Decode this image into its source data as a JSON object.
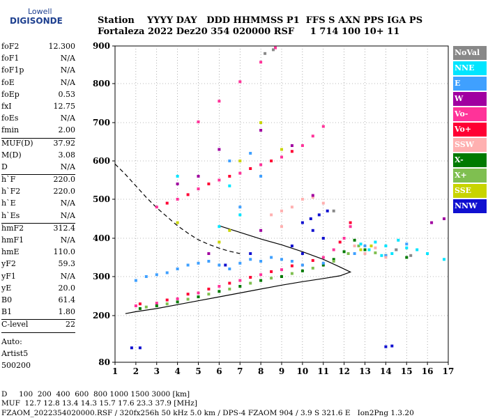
{
  "logo": {
    "line1": "Lowell",
    "line2": "DIGISONDE"
  },
  "header": {
    "line1": "Station    YYYY DAY   DDD HHMMSS P1  FFS S AXN PPS IGA PS",
    "line2": "Fortaleza 2022 Dez20 354 020000 RSF     1 714 100 10+ 11"
  },
  "params": {
    "g1": [
      [
        "foF2",
        "12.300"
      ],
      [
        "foF1",
        "N/A"
      ],
      [
        "foF1p",
        "N/A"
      ],
      [
        "foE",
        "N/A"
      ],
      [
        "foEp",
        "0.53"
      ],
      [
        "fxI",
        "12.75"
      ],
      [
        "foEs",
        "N/A"
      ],
      [
        "fmin",
        "2.00"
      ]
    ],
    "g2": [
      [
        "MUF(D)",
        "37.92"
      ],
      [
        "M(D)",
        "3.08"
      ],
      [
        "D",
        "N/A"
      ]
    ],
    "g3": [
      [
        "h`F",
        "220.0"
      ],
      [
        "h`F2",
        "220.0"
      ],
      [
        "h`E",
        "N/A"
      ],
      [
        "h`Es",
        "N/A"
      ]
    ],
    "g4": [
      [
        "hmF2",
        "312.4"
      ],
      [
        "hmF1",
        "N/A"
      ],
      [
        "hmE",
        "110.0"
      ],
      [
        "yF2",
        "59.3"
      ],
      [
        "yF1",
        "N/A"
      ],
      [
        "yE",
        "20.0"
      ],
      [
        "B0",
        "61.4"
      ],
      [
        "B1",
        "1.80"
      ]
    ],
    "g5": [
      [
        "C-level",
        "22"
      ]
    ],
    "auto": [
      "Auto:",
      "Artist5",
      "500200"
    ]
  },
  "legend": [
    {
      "label": "NoVal",
      "color": "#888888"
    },
    {
      "label": "NNE",
      "color": "#00e5ff"
    },
    {
      "label": "E",
      "color": "#3fa0ff"
    },
    {
      "label": "W",
      "color": "#a000a0"
    },
    {
      "label": "Vo-",
      "color": "#ff3399"
    },
    {
      "label": "Vo+",
      "color": "#ff0033"
    },
    {
      "label": "SSW",
      "color": "#ffb0b0"
    },
    {
      "label": "X-",
      "color": "#007a00"
    },
    {
      "label": "X+",
      "color": "#7fbf50"
    },
    {
      "label": "SSE",
      "color": "#c8d400"
    },
    {
      "label": "NNW",
      "color": "#1010d0"
    }
  ],
  "footer": {
    "line1": "D     100  200  400  600  800 1000 1500 3000 [km]",
    "line2": "MUF  12.7 12.8 13.4 14.3 15.7 17.6 23.3 37.9 [MHz]",
    "line3": "FZAOM_2022354020000.RSF / 320fx256h 50 kHz 5.0 km / DPS-4 FZAOM 904 / 3.9 S 321.6 E   Ion2Png 1.3.20"
  },
  "chart_data": {
    "type": "scatter",
    "title": "",
    "xlabel": "",
    "ylabel": "",
    "xlim": [
      1,
      17
    ],
    "ylim": [
      80,
      900
    ],
    "x_ticks": [
      1,
      2,
      3,
      4,
      5,
      6,
      7,
      8,
      9,
      10,
      11,
      12,
      13,
      14,
      15,
      16,
      17
    ],
    "y_ticks": [
      80,
      200,
      300,
      400,
      500,
      600,
      700,
      800,
      900
    ],
    "grid": "dotted",
    "legend_position": "right",
    "series": [
      {
        "name": "Vo-",
        "color": "#ff3399",
        "points": [
          [
            2.0,
            225
          ],
          [
            3.0,
            232
          ],
          [
            4.0,
            243
          ],
          [
            5.0,
            258
          ],
          [
            6.0,
            275
          ],
          [
            7.0,
            290
          ],
          [
            8.0,
            305
          ],
          [
            9.0,
            318
          ],
          [
            10.0,
            330
          ],
          [
            11.0,
            350
          ],
          [
            11.5,
            370
          ],
          [
            12.0,
            400
          ],
          [
            12.3,
            430
          ],
          [
            3.0,
            480
          ],
          [
            4.0,
            500
          ],
          [
            5.0,
            527
          ],
          [
            6.0,
            550
          ],
          [
            7.0,
            568
          ],
          [
            8.0,
            590
          ],
          [
            9.0,
            610
          ],
          [
            10.0,
            640
          ],
          [
            10.5,
            665
          ],
          [
            11.0,
            690
          ],
          [
            5.0,
            702
          ],
          [
            6.0,
            755
          ],
          [
            7.0,
            805
          ],
          [
            8.0,
            857
          ],
          [
            8.7,
            895
          ]
        ]
      },
      {
        "name": "Vo+",
        "color": "#ff0033",
        "points": [
          [
            2.2,
            230
          ],
          [
            3.5,
            240
          ],
          [
            4.5,
            255
          ],
          [
            5.5,
            268
          ],
          [
            6.5,
            283
          ],
          [
            7.5,
            298
          ],
          [
            8.5,
            313
          ],
          [
            9.5,
            328
          ],
          [
            10.5,
            342
          ],
          [
            11.8,
            390
          ],
          [
            12.3,
            440
          ],
          [
            3.5,
            490
          ],
          [
            4.5,
            512
          ],
          [
            5.5,
            540
          ],
          [
            6.5,
            560
          ],
          [
            7.5,
            580
          ],
          [
            8.5,
            600
          ],
          [
            9.5,
            625
          ]
        ]
      },
      {
        "name": "X-",
        "color": "#007a00",
        "points": [
          [
            2.2,
            218
          ],
          [
            3.0,
            225
          ],
          [
            4.0,
            235
          ],
          [
            5.0,
            248
          ],
          [
            6.0,
            262
          ],
          [
            7.0,
            275
          ],
          [
            8.0,
            290
          ],
          [
            9.0,
            300
          ],
          [
            10.0,
            315
          ],
          [
            11.0,
            330
          ],
          [
            11.5,
            345
          ],
          [
            12.0,
            365
          ],
          [
            12.5,
            395
          ],
          [
            13.0,
            370
          ],
          [
            14.0,
            355
          ],
          [
            15.0,
            350
          ]
        ]
      },
      {
        "name": "X+",
        "color": "#7fbf50",
        "points": [
          [
            2.5,
            222
          ],
          [
            3.5,
            230
          ],
          [
            4.5,
            242
          ],
          [
            5.5,
            255
          ],
          [
            6.5,
            268
          ],
          [
            7.5,
            283
          ],
          [
            8.5,
            296
          ],
          [
            9.5,
            308
          ],
          [
            10.5,
            322
          ],
          [
            11.5,
            340
          ],
          [
            12.2,
            360
          ],
          [
            12.7,
            380
          ],
          [
            13.5,
            362
          ]
        ]
      },
      {
        "name": "E",
        "color": "#3fa0ff",
        "points": [
          [
            2.0,
            290
          ],
          [
            2.5,
            300
          ],
          [
            3.0,
            305
          ],
          [
            3.5,
            310
          ],
          [
            4.0,
            320
          ],
          [
            4.5,
            330
          ],
          [
            5.0,
            335
          ],
          [
            5.5,
            340
          ],
          [
            6.0,
            330
          ],
          [
            6.5,
            320
          ],
          [
            7.0,
            335
          ],
          [
            7.5,
            345
          ],
          [
            8.0,
            340
          ],
          [
            8.5,
            350
          ],
          [
            9.0,
            345
          ],
          [
            9.5,
            340
          ],
          [
            10.0,
            330
          ],
          [
            11.0,
            335
          ],
          [
            12.5,
            360
          ],
          [
            13.0,
            380
          ],
          [
            14.0,
            355
          ],
          [
            14.5,
            370
          ],
          [
            15.0,
            385
          ],
          [
            7.0,
            480
          ],
          [
            8.0,
            560
          ],
          [
            6.5,
            600
          ],
          [
            7.5,
            620
          ]
        ]
      },
      {
        "name": "NNE",
        "color": "#00e5ff",
        "points": [
          [
            12.8,
            385
          ],
          [
            13.2,
            370
          ],
          [
            13.5,
            390
          ],
          [
            13.8,
            355
          ],
          [
            14.0,
            380
          ],
          [
            14.3,
            360
          ],
          [
            14.6,
            395
          ],
          [
            15.0,
            375
          ],
          [
            15.5,
            370
          ],
          [
            16.0,
            360
          ],
          [
            16.8,
            345
          ],
          [
            6.0,
            430
          ],
          [
            7.0,
            460
          ],
          [
            6.5,
            535
          ],
          [
            4.0,
            560
          ]
        ]
      },
      {
        "name": "SSW",
        "color": "#ffb0b0",
        "points": [
          [
            8.5,
            460
          ],
          [
            9.0,
            470
          ],
          [
            9.5,
            480
          ],
          [
            10.0,
            500
          ],
          [
            10.5,
            505
          ],
          [
            11.0,
            490
          ],
          [
            9.0,
            430
          ],
          [
            12.5,
            380
          ],
          [
            13.0,
            360
          ],
          [
            13.5,
            375
          ],
          [
            14.0,
            350
          ]
        ]
      },
      {
        "name": "NNW",
        "color": "#1010d0",
        "points": [
          [
            10.0,
            440
          ],
          [
            10.4,
            450
          ],
          [
            10.8,
            460
          ],
          [
            11.2,
            470
          ],
          [
            10.5,
            420
          ],
          [
            11.0,
            400
          ],
          [
            9.5,
            380
          ],
          [
            10.0,
            360
          ],
          [
            7.5,
            360
          ],
          [
            6.3,
            330
          ],
          [
            1.8,
            117
          ],
          [
            2.2,
            117
          ],
          [
            14.0,
            120
          ],
          [
            14.3,
            122
          ]
        ]
      },
      {
        "name": "W",
        "color": "#a000a0",
        "points": [
          [
            4.0,
            540
          ],
          [
            5.0,
            560
          ],
          [
            6.0,
            630
          ],
          [
            8.0,
            680
          ],
          [
            9.5,
            640
          ],
          [
            10.5,
            510
          ],
          [
            5.5,
            360
          ],
          [
            8.0,
            420
          ],
          [
            16.2,
            440
          ],
          [
            16.8,
            450
          ]
        ]
      },
      {
        "name": "SSE",
        "color": "#c8d400",
        "points": [
          [
            6.0,
            390
          ],
          [
            6.5,
            420
          ],
          [
            7.0,
            600
          ],
          [
            8.0,
            700
          ],
          [
            9.0,
            630
          ],
          [
            12.8,
            370
          ],
          [
            13.3,
            380
          ],
          [
            4.0,
            440
          ]
        ]
      },
      {
        "name": "NoVal",
        "color": "#888888",
        "points": [
          [
            8.2,
            880
          ],
          [
            8.6,
            890
          ],
          [
            11.5,
            470
          ],
          [
            14.5,
            370
          ],
          [
            15.2,
            355
          ]
        ]
      }
    ],
    "curves": [
      {
        "name": "profile_solid",
        "style": "solid",
        "points": [
          [
            1.5,
            205
          ],
          [
            2,
            210
          ],
          [
            3,
            218
          ],
          [
            4,
            228
          ],
          [
            5,
            238
          ],
          [
            6,
            248
          ],
          [
            7,
            258
          ],
          [
            8,
            268
          ],
          [
            9,
            278
          ],
          [
            10,
            287
          ],
          [
            11,
            295
          ],
          [
            11.8,
            302
          ],
          [
            12.3,
            312
          ],
          [
            11.8,
            325
          ],
          [
            11,
            345
          ],
          [
            10,
            365
          ],
          [
            9,
            383
          ],
          [
            8,
            398
          ],
          [
            7,
            415
          ],
          [
            6,
            432
          ]
        ]
      },
      {
        "name": "profile_dashed",
        "style": "dashed",
        "points": [
          [
            1,
            592
          ],
          [
            1.5,
            565
          ],
          [
            2,
            535
          ],
          [
            2.5,
            505
          ],
          [
            3,
            478
          ],
          [
            3.5,
            455
          ],
          [
            4,
            432
          ],
          [
            4.5,
            413
          ],
          [
            5,
            396
          ],
          [
            5.5,
            384
          ],
          [
            6,
            374
          ],
          [
            6.5,
            366
          ],
          [
            7,
            360
          ]
        ]
      }
    ]
  }
}
